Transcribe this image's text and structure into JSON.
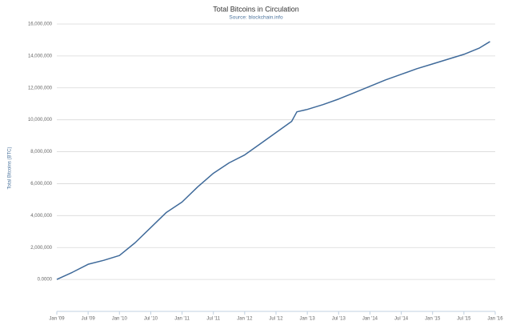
{
  "chart_data": {
    "type": "line",
    "title": "Total Bitcoins in Circulation",
    "subtitle": "Source: blockchain.info",
    "y_label": "Total Bitcoins (BTC)",
    "x": [
      "2009-01",
      "2009-04",
      "2009-07",
      "2009-10",
      "2010-01",
      "2010-04",
      "2010-07",
      "2010-10",
      "2011-01",
      "2011-04",
      "2011-07",
      "2011-10",
      "2012-01",
      "2012-04",
      "2012-07",
      "2012-10",
      "2012-11",
      "2013-01",
      "2013-04",
      "2013-07",
      "2013-10",
      "2014-01",
      "2014-04",
      "2014-07",
      "2014-10",
      "2015-01",
      "2015-04",
      "2015-07",
      "2015-10",
      "2015-12"
    ],
    "values": [
      0,
      450000,
      950000,
      1200000,
      1500000,
      2300000,
      3250000,
      4200000,
      4850000,
      5800000,
      6650000,
      7300000,
      7800000,
      8500000,
      9200000,
      9900000,
      10500000,
      10650000,
      10950000,
      11300000,
      11700000,
      12100000,
      12500000,
      12850000,
      13200000,
      13500000,
      13800000,
      14100000,
      14500000,
      14900000
    ],
    "color": "#3f6a9a",
    "xlim": [
      "2009-01",
      "2016-01"
    ],
    "xticks": [
      {
        "value": "2009-01",
        "label": "Jan '09"
      },
      {
        "value": "2009-07",
        "label": "Jul '09"
      },
      {
        "value": "2010-01",
        "label": "Jan '10"
      },
      {
        "value": "2010-07",
        "label": "Jul '10"
      },
      {
        "value": "2011-01",
        "label": "Jan '11"
      },
      {
        "value": "2011-07",
        "label": "Jul '11"
      },
      {
        "value": "2012-01",
        "label": "Jan '12"
      },
      {
        "value": "2012-07",
        "label": "Jul '12"
      },
      {
        "value": "2013-01",
        "label": "Jan '13"
      },
      {
        "value": "2013-07",
        "label": "Jul '13"
      },
      {
        "value": "2014-01",
        "label": "Jan '14"
      },
      {
        "value": "2014-07",
        "label": "Jul '14"
      },
      {
        "value": "2015-01",
        "label": "Jan '15"
      },
      {
        "value": "2015-07",
        "label": "Jul '15"
      },
      {
        "value": "2016-01",
        "label": "Jan '16"
      }
    ],
    "ylim": [
      -2000000,
      16000000
    ],
    "yticks": [
      {
        "value": 0,
        "label": "0.0000"
      },
      {
        "value": 2000000,
        "label": "2,000,000"
      },
      {
        "value": 4000000,
        "label": "4,000,000"
      },
      {
        "value": 6000000,
        "label": "6,000,000"
      },
      {
        "value": 8000000,
        "label": "8,000,000"
      },
      {
        "value": 10000000,
        "label": "10,000,000"
      },
      {
        "value": 12000000,
        "label": "12,000,000"
      },
      {
        "value": 14000000,
        "label": "14,000,000"
      },
      {
        "value": 16000000,
        "label": "16,000,000"
      }
    ],
    "grid": true
  }
}
